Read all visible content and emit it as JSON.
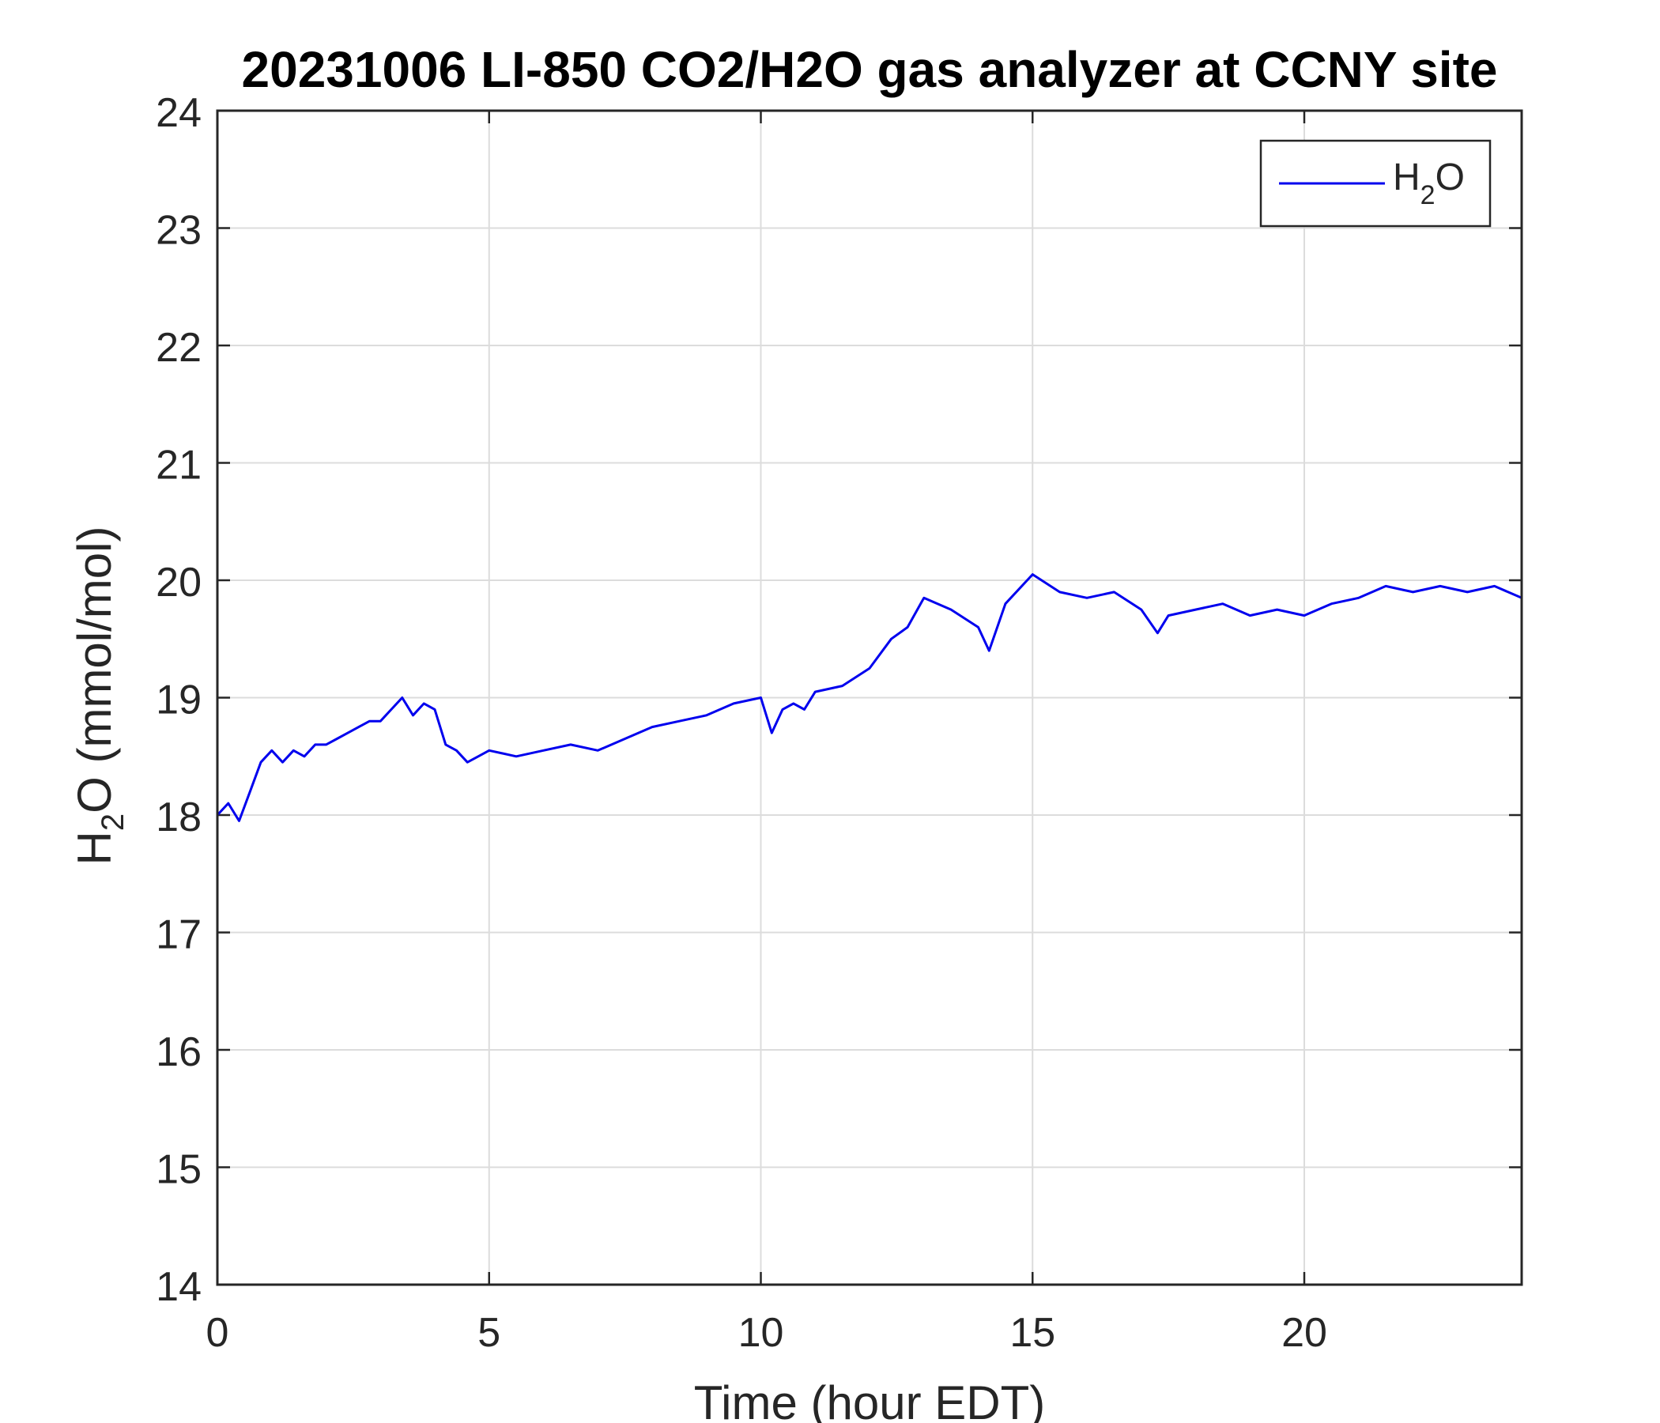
{
  "chart_data": {
    "type": "line",
    "title": "20231006 LI-850 CO2/H2O gas analyzer at CCNY site",
    "xlabel": "Time (hour EDT)",
    "ylabel": {
      "main": "H",
      "sub": "2",
      "rest": "O (mmol/mol)"
    },
    "xlim": [
      0,
      24
    ],
    "ylim": [
      14,
      24
    ],
    "xticks": [
      0,
      5,
      10,
      15,
      20
    ],
    "yticks": [
      14,
      15,
      16,
      17,
      18,
      19,
      20,
      21,
      22,
      23,
      24
    ],
    "grid": true,
    "legend": {
      "position": "top-right",
      "entries": [
        {
          "main": "H",
          "sub": "2",
          "rest": "O"
        }
      ]
    },
    "series": [
      {
        "name": "H2O",
        "color": "#0000ee",
        "x": [
          0,
          0.2,
          0.4,
          0.6,
          0.8,
          1.0,
          1.2,
          1.4,
          1.6,
          1.8,
          2.0,
          2.2,
          2.4,
          2.6,
          2.8,
          3.0,
          3.2,
          3.4,
          3.6,
          3.8,
          4.0,
          4.2,
          4.4,
          4.6,
          4.8,
          5.0,
          5.5,
          6.0,
          6.5,
          7.0,
          7.5,
          8.0,
          8.5,
          9.0,
          9.5,
          10.0,
          10.2,
          10.4,
          10.6,
          10.8,
          11.0,
          11.5,
          12.0,
          12.4,
          12.7,
          13.0,
          13.5,
          14.0,
          14.2,
          14.5,
          15.0,
          15.5,
          16.0,
          16.5,
          17.0,
          17.3,
          17.5,
          18.0,
          18.5,
          19.0,
          19.5,
          20.0,
          20.5,
          21.0,
          21.5,
          22.0,
          22.5,
          23.0,
          23.5,
          24.0
        ],
        "y": [
          18.0,
          18.1,
          17.95,
          18.2,
          18.45,
          18.55,
          18.45,
          18.55,
          18.5,
          18.6,
          18.6,
          18.65,
          18.7,
          18.75,
          18.8,
          18.8,
          18.9,
          19.0,
          18.85,
          18.95,
          18.9,
          18.6,
          18.55,
          18.45,
          18.5,
          18.55,
          18.5,
          18.55,
          18.6,
          18.55,
          18.65,
          18.75,
          18.8,
          18.85,
          18.95,
          19.0,
          18.7,
          18.9,
          18.95,
          18.9,
          19.05,
          19.1,
          19.25,
          19.5,
          19.6,
          19.85,
          19.75,
          19.6,
          19.4,
          19.8,
          20.05,
          19.9,
          19.85,
          19.9,
          19.75,
          19.55,
          19.7,
          19.75,
          19.8,
          19.7,
          19.75,
          19.7,
          19.8,
          19.85,
          19.95,
          19.9,
          19.95,
          19.9,
          19.95,
          19.85
        ]
      }
    ]
  }
}
